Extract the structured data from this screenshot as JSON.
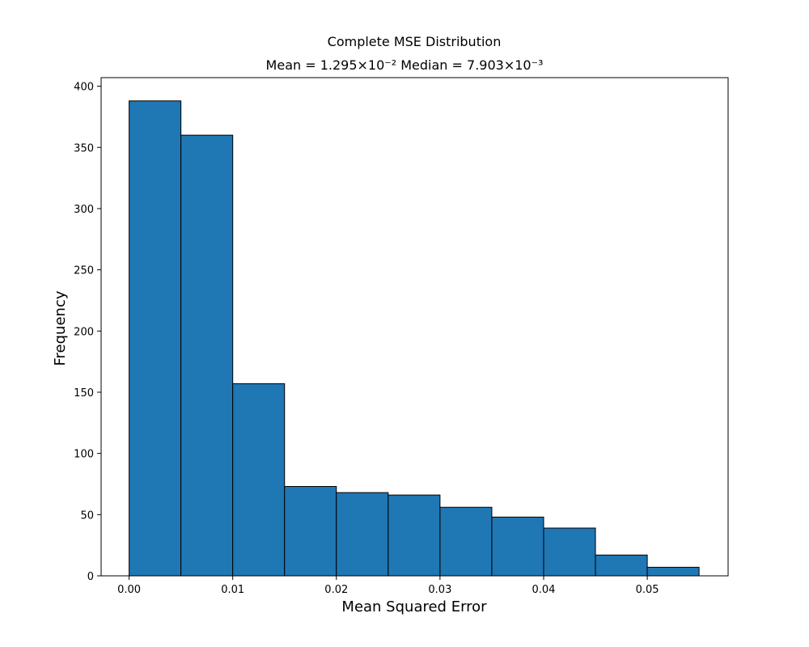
{
  "chart_data": {
    "type": "bar",
    "title": "Complete MSE Distribution",
    "subtitle": "Mean = 1.295×10⁻²        Median = 7.903×10⁻³",
    "xlabel": "Mean Squared Error",
    "ylabel": "Frequency",
    "bin_edges": [
      0.0,
      0.005,
      0.01,
      0.015,
      0.02,
      0.025,
      0.03,
      0.035,
      0.04,
      0.045,
      0.05,
      0.055
    ],
    "values": [
      388,
      360,
      157,
      73,
      68,
      66,
      56,
      48,
      39,
      17,
      7
    ],
    "xlim": [
      -0.0027,
      0.0578
    ],
    "ylim": [
      0,
      407
    ],
    "xticks": [
      0.0,
      0.01,
      0.02,
      0.03,
      0.04,
      0.05
    ],
    "xtick_labels": [
      "0.00",
      "0.01",
      "0.02",
      "0.03",
      "0.04",
      "0.05"
    ],
    "yticks": [
      0,
      50,
      100,
      150,
      200,
      250,
      300,
      350,
      400
    ],
    "ytick_labels": [
      "0",
      "50",
      "100",
      "150",
      "200",
      "250",
      "300",
      "350",
      "400"
    ],
    "grid": false,
    "bar_color": "#1f77b4",
    "edge_color": "#000000"
  }
}
